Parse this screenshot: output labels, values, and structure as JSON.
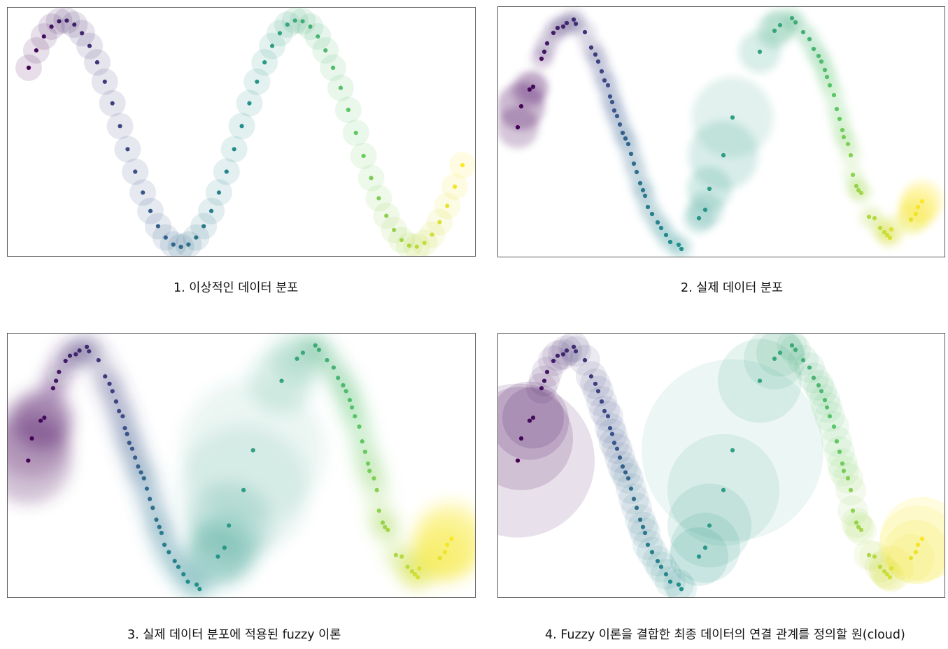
{
  "panels": [
    {
      "id": "ideal",
      "caption": "1. 이상적인 데이터 분포"
    },
    {
      "id": "real",
      "caption": "2. 실제 데이터 분포"
    },
    {
      "id": "fuzzy",
      "caption": "3. 실제 데이터 분포에 적용된 fuzzy 이론"
    },
    {
      "id": "cloud",
      "caption": "4. Fuzzy 이론을 결합한 최종 데이터의 연결 관계를 정의할 원(cloud)"
    }
  ],
  "colors": {
    "colormap": "viridis",
    "frame": "#5a5a5a",
    "stops": [
      "#440154",
      "#3b528b",
      "#21908d",
      "#5dc863",
      "#fde725"
    ]
  }
}
